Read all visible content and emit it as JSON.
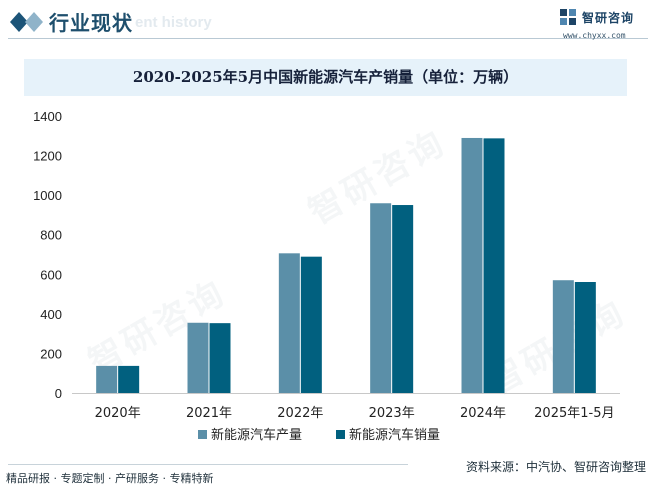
{
  "header": {
    "title": "行业现状",
    "subtitle": "ent history",
    "logo_text": "智研咨询",
    "logo_url": "www.chyxx.com"
  },
  "chart_data": {
    "type": "bar",
    "title": "2020-2025年5月中国新能源汽车产销量（单位：万辆）",
    "xlabel": "",
    "ylabel": "",
    "categories": [
      "2020年",
      "2021年",
      "2022年",
      "2023年",
      "2024年",
      "2025年1-5月"
    ],
    "ylim": [
      0,
      1400
    ],
    "yticks": [
      0,
      200,
      400,
      600,
      800,
      1000,
      1200,
      1400
    ],
    "grid": false,
    "legend_position": "bottom",
    "series": [
      {
        "name": "新能源汽车产量",
        "color": "#5b8fa8",
        "values": [
          137,
          355,
          706,
          959,
          1289,
          570
        ]
      },
      {
        "name": "新能源汽车销量",
        "color": "#01607f",
        "values": [
          137,
          353,
          689,
          950,
          1287,
          561
        ]
      }
    ]
  },
  "footer": {
    "left": "精品研报 · 专题定制 · 产研服务 · 专精特新",
    "source": "资料来源：中汽协、智研咨询整理"
  },
  "watermark": "智研咨询"
}
